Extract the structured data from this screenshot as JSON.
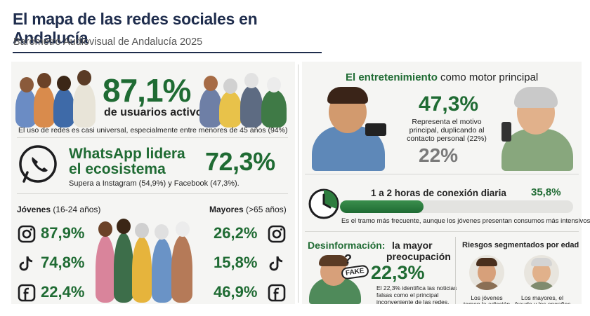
{
  "header": {
    "title": "El mapa de las redes sociales en Andalucía",
    "subtitle": "Barómetro Audiovisual de Andalucía 2025"
  },
  "users": {
    "percent": "87,1%",
    "label": "de usuarios activos",
    "note": "El uso de redes es casi universal, especialmente entre menores de 45 años (94%)"
  },
  "whatsapp": {
    "title_line1": "WhatsApp lidera",
    "title_line2": "el ecosistema",
    "percent": "72,3%",
    "note": "Supera a Instagram (54,9%) y Facebook (47,3%)."
  },
  "age": {
    "young_label": "Jóvenes",
    "young_range": "(16-24 años)",
    "old_label": "Mayores",
    "old_range": "(>65 años)",
    "rows": [
      {
        "icon": "instagram-icon",
        "young": "87,9%",
        "old": "26,2%"
      },
      {
        "icon": "tiktok-icon",
        "young": "74,8%",
        "old": "15,8%"
      },
      {
        "icon": "facebook-icon",
        "young": "22,4%",
        "old": "46,9%"
      }
    ]
  },
  "entertainment": {
    "title_strong": "El entretenimiento",
    "title_rest": "como motor principal",
    "percent": "47,3%",
    "desc_line1": "Representa el motivo",
    "desc_line2": "principal, duplicando al",
    "desc_line3": "contacto personal (22%)",
    "secondary": "22%"
  },
  "connection": {
    "title": "1 a 2 horas de conexión diaria",
    "percent": "35,8%",
    "fill_fraction": 0.358,
    "note": "Es el tramo más frecuente, aunque los jóvenes presentan consumos más intensivos"
  },
  "misinfo": {
    "title_strong": "Desinformación:",
    "title_rest1": "la mayor",
    "title_rest2": "preocupación",
    "percent": "22,3%",
    "badge": "FAKE",
    "desc_line1": "El 22,3% identifica las noticias",
    "desc_line2": "falsas como el principal",
    "desc_line3": "inconveniente de las redes."
  },
  "risks": {
    "title": "Riesgos segmentados por edad",
    "young_line1": "Los jóvenes",
    "young_line2": "temen la adicción",
    "old_line1": "Los mayores, el",
    "old_line2": "fraude y los engaños"
  },
  "colors": {
    "green": "#1f6b33",
    "navy": "#1f2d4d",
    "panel": "#f5f5f3"
  }
}
